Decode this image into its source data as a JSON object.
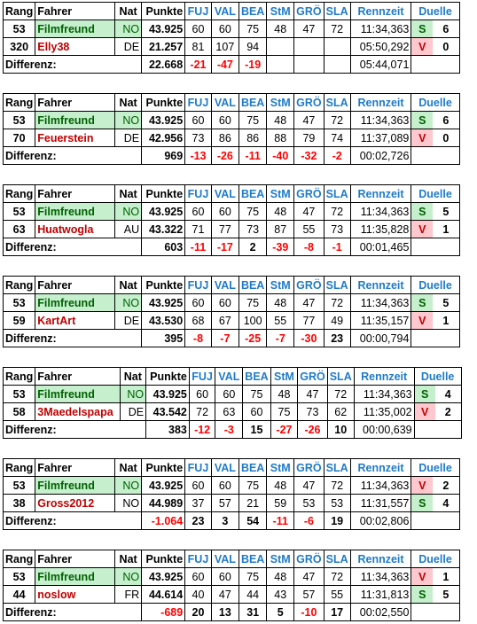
{
  "headers": {
    "rang": "Rang",
    "fahrer": "Fahrer",
    "nat": "Nat",
    "punkte": "Punkte",
    "stages": [
      "FUJ",
      "VAL",
      "BEA",
      "StM",
      "GRÖ",
      "SLA"
    ],
    "rennzeit": "Rennzeit",
    "duelle": "Duelle"
  },
  "diff_label": "Differenz:",
  "tables": [
    {
      "p1": {
        "rang": "53",
        "name": "Filmfreund",
        "nat": "NO",
        "punkte": "43.925",
        "stages": [
          "60",
          "60",
          "75",
          "48",
          "47",
          "72"
        ],
        "zeit": "11:34,363",
        "sv": "S",
        "duelle": "6"
      },
      "p2": {
        "rang": "320",
        "name": "Elly38",
        "nat": "DE",
        "punkte": "21.257",
        "stages": [
          "81",
          "107",
          "94",
          "",
          "",
          ""
        ],
        "zeit": "05:50,292",
        "sv": "V",
        "duelle": "0"
      },
      "diff": {
        "punkte": "22.668",
        "punkte_neg": false,
        "stages": [
          "-21",
          "-47",
          "-19",
          "",
          "",
          ""
        ],
        "zeit": "05:44,071"
      }
    },
    {
      "p1": {
        "rang": "53",
        "name": "Filmfreund",
        "nat": "NO",
        "punkte": "43.925",
        "stages": [
          "60",
          "60",
          "75",
          "48",
          "47",
          "72"
        ],
        "zeit": "11:34,363",
        "sv": "S",
        "duelle": "6"
      },
      "p2": {
        "rang": "70",
        "name": "Feuerstein",
        "nat": "DE",
        "punkte": "42.956",
        "stages": [
          "73",
          "86",
          "86",
          "88",
          "79",
          "74"
        ],
        "zeit": "11:37,089",
        "sv": "V",
        "duelle": "0"
      },
      "diff": {
        "punkte": "969",
        "punkte_neg": false,
        "stages": [
          "-13",
          "-26",
          "-11",
          "-40",
          "-32",
          "-2"
        ],
        "zeit": "00:02,726"
      }
    },
    {
      "p1": {
        "rang": "53",
        "name": "Filmfreund",
        "nat": "NO",
        "punkte": "43.925",
        "stages": [
          "60",
          "60",
          "75",
          "48",
          "47",
          "72"
        ],
        "zeit": "11:34,363",
        "sv": "S",
        "duelle": "5"
      },
      "p2": {
        "rang": "63",
        "name": "Huatwogla",
        "nat": "AU",
        "punkte": "43.322",
        "stages": [
          "71",
          "77",
          "73",
          "87",
          "55",
          "73"
        ],
        "zeit": "11:35,828",
        "sv": "V",
        "duelle": "1"
      },
      "diff": {
        "punkte": "603",
        "punkte_neg": false,
        "stages": [
          "-11",
          "-17",
          "2",
          "-39",
          "-8",
          "-1"
        ],
        "zeit": "00:01,465"
      }
    },
    {
      "p1": {
        "rang": "53",
        "name": "Filmfreund",
        "nat": "NO",
        "punkte": "43.925",
        "stages": [
          "60",
          "60",
          "75",
          "48",
          "47",
          "72"
        ],
        "zeit": "11:34,363",
        "sv": "S",
        "duelle": "5"
      },
      "p2": {
        "rang": "59",
        "name": "KartArt",
        "nat": "DE",
        "punkte": "43.530",
        "stages": [
          "68",
          "67",
          "100",
          "55",
          "77",
          "49"
        ],
        "zeit": "11:35,157",
        "sv": "V",
        "duelle": "1"
      },
      "diff": {
        "punkte": "395",
        "punkte_neg": false,
        "stages": [
          "-8",
          "-7",
          "-25",
          "-7",
          "-30",
          "23"
        ],
        "zeit": "00:00,794"
      }
    },
    {
      "p1": {
        "rang": "53",
        "name": "Filmfreund",
        "nat": "NO",
        "punkte": "43.925",
        "stages": [
          "60",
          "60",
          "75",
          "48",
          "47",
          "72"
        ],
        "zeit": "11:34,363",
        "sv": "S",
        "duelle": "4"
      },
      "p2": {
        "rang": "58",
        "name": "3Maedelspapa",
        "nat": "DE",
        "punkte": "43.542",
        "stages": [
          "72",
          "63",
          "60",
          "75",
          "73",
          "62"
        ],
        "zeit": "11:35,002",
        "sv": "V",
        "duelle": "2"
      },
      "diff": {
        "punkte": "383",
        "punkte_neg": false,
        "stages": [
          "-12",
          "-3",
          "15",
          "-27",
          "-26",
          "10"
        ],
        "zeit": "00:00,639"
      }
    },
    {
      "p1": {
        "rang": "53",
        "name": "Filmfreund",
        "nat": "NO",
        "punkte": "43.925",
        "stages": [
          "60",
          "60",
          "75",
          "48",
          "47",
          "72"
        ],
        "zeit": "11:34,363",
        "sv": "V",
        "duelle": "2"
      },
      "p2": {
        "rang": "38",
        "name": "Gross2012",
        "nat": "NO",
        "punkte": "44.989",
        "stages": [
          "37",
          "57",
          "21",
          "59",
          "53",
          "53"
        ],
        "zeit": "11:31,557",
        "sv": "S",
        "duelle": "4"
      },
      "diff": {
        "punkte": "-1.064",
        "punkte_neg": true,
        "stages": [
          "23",
          "3",
          "54",
          "-11",
          "-6",
          "19"
        ],
        "zeit": "00:02,806"
      }
    },
    {
      "p1": {
        "rang": "53",
        "name": "Filmfreund",
        "nat": "NO",
        "punkte": "43.925",
        "stages": [
          "60",
          "60",
          "75",
          "48",
          "47",
          "72"
        ],
        "zeit": "11:34,363",
        "sv": "V",
        "duelle": "1"
      },
      "p2": {
        "rang": "44",
        "name": "noslow",
        "nat": "FR",
        "punkte": "44.614",
        "stages": [
          "40",
          "47",
          "44",
          "43",
          "57",
          "55"
        ],
        "zeit": "11:31,813",
        "sv": "S",
        "duelle": "5"
      },
      "diff": {
        "punkte": "-689",
        "punkte_neg": true,
        "stages": [
          "20",
          "13",
          "31",
          "5",
          "-10",
          "17"
        ],
        "zeit": "00:02,550"
      }
    }
  ]
}
